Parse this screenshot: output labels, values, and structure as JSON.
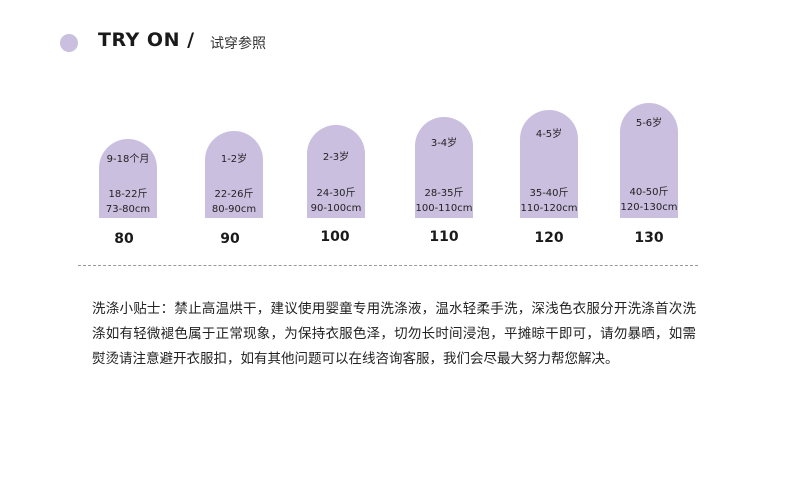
{
  "header": {
    "title_en": "TRY ON /",
    "title_cn": "试穿参照"
  },
  "cards": [
    {
      "age": "9-18个月",
      "weight": "18-22斤",
      "height": "73-80cm",
      "size": "80"
    },
    {
      "age": "1-2岁",
      "weight": "22-26斤",
      "height": "80-90cm",
      "size": "90"
    },
    {
      "age": "2-3岁",
      "weight": "24-30斤",
      "height": "90-100cm",
      "size": "100"
    },
    {
      "age": "3-4岁",
      "weight": "28-35斤",
      "height": "100-110cm",
      "size": "110"
    },
    {
      "age": "4-5岁",
      "weight": "35-40斤",
      "height": "110-120cm",
      "size": "120"
    },
    {
      "age": "5-6岁",
      "weight": "40-50斤",
      "height": "120-130cm",
      "size": "130"
    }
  ],
  "tips": {
    "text": "洗涤小贴士：禁止高温烘干，建议使用婴童专用洗涤液，温水轻柔手洗，深浅色衣服分开洗涤首次洗涤如有轻微褪色属于正常现象，为保持衣服色泽，切勿长时间浸泡，平摊晾干即可，请勿暴晒，如需熨烫请注意避开衣服扣，如有其他问题可以在线咨询客服，我们会尽最大努力帮您解决。"
  }
}
